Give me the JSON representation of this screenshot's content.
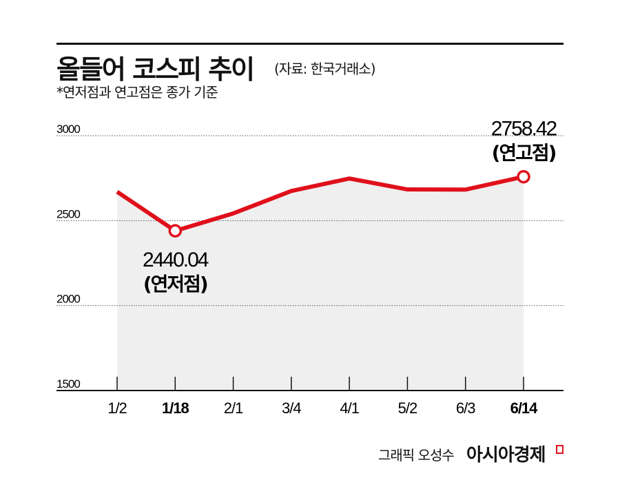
{
  "header": {
    "title": "올들어 코스피 추이",
    "source": "(자료: 한국거래소)",
    "note": "*연저점과 연고점은 종가 기준"
  },
  "footer": {
    "credit": "그래픽 오성수",
    "brand": "아시아경제"
  },
  "colors": {
    "line": "#e0101b",
    "fill": "#efefef",
    "grid": "#555555"
  },
  "chart_data": {
    "type": "line",
    "categories": [
      "1/2",
      "1/18",
      "2/1",
      "3/4",
      "4/1",
      "5/2",
      "6/3",
      "6/14"
    ],
    "bold_categories": [
      "1/18",
      "6/14"
    ],
    "values": [
      2669.81,
      2440.04,
      2542.46,
      2674.27,
      2747.86,
      2683.65,
      2682.52,
      2758.42
    ],
    "ylim": [
      1500,
      3000
    ],
    "yticks": [
      "1500",
      "2000",
      "2500",
      "3000"
    ],
    "grid": true,
    "annotations": [
      {
        "category": "1/18",
        "value": "2440.04",
        "label": "(연저점)"
      },
      {
        "category": "6/14",
        "value": "2758.42",
        "label": "(연고점)"
      }
    ]
  }
}
